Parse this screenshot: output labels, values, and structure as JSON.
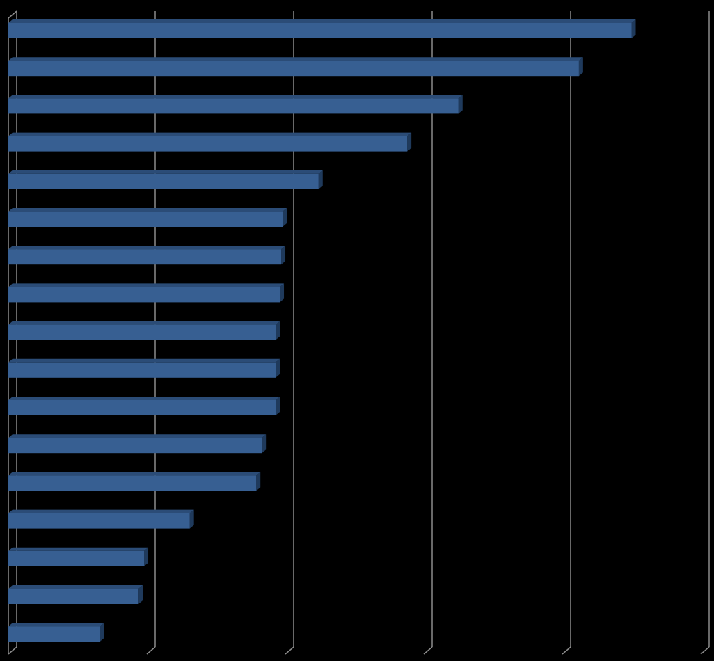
{
  "chart_data": {
    "type": "bar",
    "orientation": "horizontal",
    "three_d": true,
    "title": "",
    "xlabel": "",
    "ylabel": "",
    "categories": [
      "",
      "",
      "",
      "",
      "",
      "",
      "",
      "",
      "",
      "",
      "",
      "",
      "",
      "",
      "",
      "",
      ""
    ],
    "values": [
      4.5,
      4.12,
      3.25,
      2.88,
      2.24,
      1.98,
      1.97,
      1.96,
      1.93,
      1.93,
      1.93,
      1.83,
      1.79,
      1.31,
      0.98,
      0.94,
      0.66
    ],
    "xlim": [
      0,
      5
    ],
    "gridlines": true,
    "legend": "none",
    "colors": {
      "background": "#000000",
      "bar_front": "#375F92",
      "bar_top": "#2B4C77",
      "bar_side": "#1F3A5C",
      "grid": "#8C8C8C"
    }
  }
}
